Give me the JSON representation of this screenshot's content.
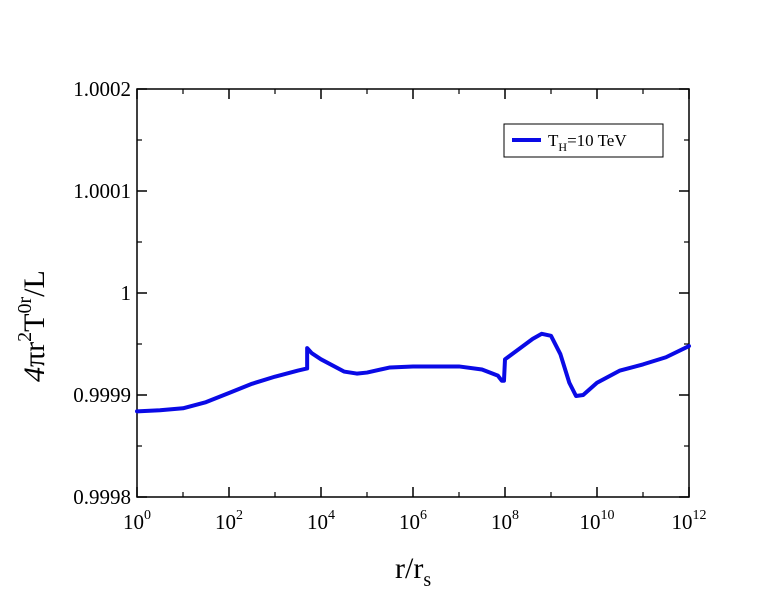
{
  "chart_data": {
    "type": "line",
    "x_scale": "log10",
    "xlim": [
      1,
      1000000000000
    ],
    "ylim": [
      0.9998,
      1.0002
    ],
    "grid": false,
    "legend_position": "top-right",
    "x_label": {
      "base": "r/r",
      "sub": "s"
    },
    "y_label": {
      "p1": "4",
      "p2": "π",
      "p3": "r",
      "sup1": "2",
      "p4": "T",
      "sup2": "0r",
      "p5": "/L"
    },
    "x_ticks": [
      {
        "value": 1,
        "base": "10",
        "exp": "0"
      },
      {
        "value": 100,
        "base": "10",
        "exp": "2"
      },
      {
        "value": 10000,
        "base": "10",
        "exp": "4"
      },
      {
        "value": 1000000,
        "base": "10",
        "exp": "6"
      },
      {
        "value": 100000000,
        "base": "10",
        "exp": "8"
      },
      {
        "value": 10000000000,
        "base": "10",
        "exp": "10"
      },
      {
        "value": 1000000000000,
        "base": "10",
        "exp": "12"
      }
    ],
    "y_ticks": [
      {
        "value": 0.9998,
        "label": "0.9998"
      },
      {
        "value": 0.9999,
        "label": "0.9999"
      },
      {
        "value": 1.0,
        "label": "1"
      },
      {
        "value": 1.0001,
        "label": "1.0001"
      },
      {
        "value": 1.0002,
        "label": "1.0002"
      }
    ],
    "series": [
      {
        "legend": {
          "pre": "T",
          "sub": "H",
          "post": "=10 TeV"
        },
        "color": "#0a0ae6",
        "points": [
          [
            1,
            0.999884
          ],
          [
            3.16,
            0.999885
          ],
          [
            10,
            0.999887
          ],
          [
            31.6,
            0.999893
          ],
          [
            100,
            0.999902
          ],
          [
            316,
            0.999911
          ],
          [
            1000,
            0.999918
          ],
          [
            3160,
            0.999924
          ],
          [
            5000,
            0.999926
          ],
          [
            5001,
            0.999946
          ],
          [
            6300,
            0.999941
          ],
          [
            10000,
            0.999935
          ],
          [
            31600,
            0.999923
          ],
          [
            60000,
            0.999921
          ],
          [
            100000,
            0.999922
          ],
          [
            316000,
            0.999927
          ],
          [
            1000000,
            0.999928
          ],
          [
            3160000,
            0.999928
          ],
          [
            10000000,
            0.999928
          ],
          [
            31600000,
            0.999925
          ],
          [
            70000000,
            0.999919
          ],
          [
            85000000,
            0.999914
          ],
          [
            95000000,
            0.999914
          ],
          [
            100000000,
            0.999935
          ],
          [
            200000000,
            0.999945
          ],
          [
            400000000,
            0.999955
          ],
          [
            630000000,
            0.99996
          ],
          [
            1000000000,
            0.999958
          ],
          [
            1600000000,
            0.99994
          ],
          [
            2500000000,
            0.999912
          ],
          [
            3500000000,
            0.999899
          ],
          [
            5000000000,
            0.9999
          ],
          [
            10000000000,
            0.999912
          ],
          [
            31600000000,
            0.999924
          ],
          [
            100000000000,
            0.99993
          ],
          [
            316000000000,
            0.999937
          ],
          [
            1000000000000,
            0.999948
          ]
        ]
      }
    ]
  }
}
